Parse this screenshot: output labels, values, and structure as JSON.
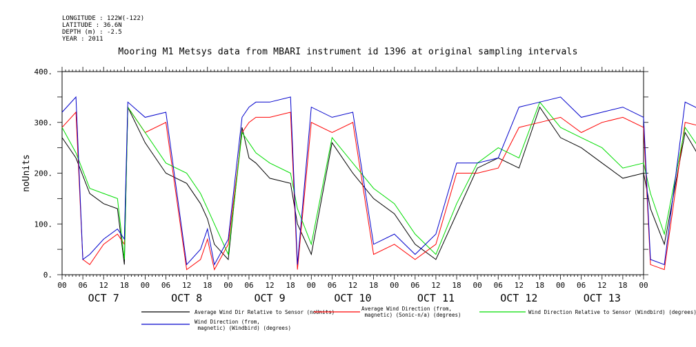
{
  "meta": {
    "longitude": "LONGITUDE : 122W(-122)",
    "latitude": "LATITUDE : 36.6N",
    "depth": "DEPTH (m) : -2.5",
    "year": "YEAR : 2011"
  },
  "chart_data": {
    "type": "line",
    "title": "Mooring M1 Metsys data from MBARI instrument id 1396 at original sampling intervals",
    "ylabel": "noUnits",
    "xlabel": "",
    "ylim": [
      0,
      400
    ],
    "yticks": [
      "0.",
      "100.",
      "200.",
      "300.",
      "400."
    ],
    "x_hour_ticks": [
      "00",
      "06",
      "12",
      "18",
      "00",
      "06",
      "12",
      "18",
      "00",
      "06",
      "12",
      "18",
      "00",
      "06",
      "12",
      "18",
      "00",
      "06",
      "12",
      "18",
      "00",
      "06",
      "12",
      "18",
      "00",
      "06",
      "12",
      "18",
      "00"
    ],
    "day_labels": [
      "OCT 7",
      "OCT 8",
      "OCT 9",
      "OCT 10",
      "OCT 11",
      "OCT 12",
      "OCT 13"
    ],
    "grid": false,
    "legend_position": "bottom",
    "series": [
      {
        "name": "Average Wind Dir Relative to Sensor (noUnits)",
        "color": "#000000",
        "x_hours": [
          0,
          4,
          8,
          12,
          16,
          18,
          19,
          24,
          30,
          36,
          40,
          42,
          44,
          48,
          52,
          54,
          56,
          60,
          66,
          68,
          72,
          78,
          84,
          90,
          96,
          102,
          108,
          114,
          120,
          126,
          132,
          138,
          144,
          150,
          156,
          162,
          168,
          170,
          174,
          180,
          186,
          192,
          198,
          204,
          210,
          216,
          222,
          228,
          234,
          240,
          246,
          252,
          258,
          264,
          270,
          276,
          282,
          288,
          294,
          300,
          306,
          312,
          318,
          324,
          330,
          336
        ],
        "values": [
          270,
          230,
          160,
          140,
          130,
          20,
          330,
          260,
          200,
          180,
          140,
          110,
          60,
          30,
          290,
          230,
          220,
          190,
          180,
          100,
          40,
          260,
          200,
          150,
          120,
          60,
          30,
          120,
          210,
          230,
          210,
          330,
          270,
          250,
          220,
          190,
          200,
          130,
          60,
          280,
          210,
          140,
          150,
          100,
          60,
          200,
          210,
          150,
          80,
          190,
          170,
          210,
          200,
          110,
          80,
          160,
          120,
          40,
          140,
          200,
          210,
          190,
          200,
          210,
          200,
          200
        ]
      },
      {
        "name": "Average Wind Direction (from, magnetic) (Sonic-n/a) (degrees)",
        "color": "#ff0000",
        "x_hours": [
          0,
          4,
          6,
          8,
          12,
          16,
          18,
          19,
          24,
          30,
          36,
          40,
          42,
          44,
          48,
          52,
          54,
          56,
          60,
          66,
          68,
          72,
          78,
          84,
          90,
          96,
          102,
          108,
          114,
          120,
          126,
          132,
          138,
          144,
          150,
          156,
          162,
          168,
          170,
          174,
          180,
          186,
          192,
          198,
          204,
          210,
          216,
          222,
          228,
          234,
          240,
          246,
          252,
          258,
          264,
          270,
          276,
          282,
          288,
          294,
          300,
          306,
          312,
          318,
          324,
          330,
          336
        ],
        "values": [
          290,
          320,
          30,
          20,
          60,
          80,
          60,
          330,
          280,
          300,
          10,
          30,
          70,
          10,
          60,
          280,
          300,
          310,
          310,
          320,
          10,
          300,
          280,
          300,
          40,
          60,
          30,
          60,
          200,
          200,
          210,
          290,
          300,
          310,
          280,
          300,
          310,
          290,
          20,
          10,
          300,
          290,
          290,
          300,
          310,
          300,
          320,
          310,
          10,
          10,
          320,
          320,
          310,
          10,
          30,
          300,
          290,
          290,
          300,
          310,
          320,
          320,
          340,
          300,
          300,
          290,
          290
        ]
      },
      {
        "name": "Wind Direction Relative to Sensor (Windbird) (degrees)",
        "color": "#00dd00",
        "x_hours": [
          0,
          4,
          8,
          12,
          16,
          18,
          19,
          24,
          30,
          36,
          40,
          42,
          44,
          48,
          52,
          54,
          56,
          60,
          66,
          68,
          72,
          78,
          84,
          90,
          96,
          102,
          108,
          114,
          120,
          126,
          132,
          138,
          144,
          150,
          156,
          162,
          168,
          170,
          174,
          180,
          186,
          192,
          198,
          204,
          210,
          216,
          222,
          228,
          234,
          240,
          246,
          252,
          258,
          264,
          270,
          276,
          282,
          288,
          294,
          300,
          306,
          312,
          318,
          324,
          330,
          336
        ],
        "values": [
          290,
          240,
          170,
          160,
          150,
          30,
          330,
          280,
          220,
          200,
          160,
          130,
          100,
          40,
          280,
          260,
          240,
          220,
          200,
          130,
          60,
          270,
          220,
          170,
          140,
          80,
          40,
          140,
          220,
          250,
          230,
          340,
          290,
          270,
          250,
          210,
          220,
          160,
          80,
          290,
          230,
          170,
          180,
          130,
          80,
          230,
          240,
          180,
          100,
          220,
          200,
          240,
          230,
          140,
          110,
          190,
          150,
          60,
          170,
          220,
          230,
          210,
          220,
          230,
          220,
          220
        ]
      },
      {
        "name": "Wind Direction (from, magnetic) (Windbird) (degrees)",
        "color": "#0000cc",
        "x_hours": [
          0,
          4,
          6,
          8,
          12,
          16,
          18,
          19,
          24,
          30,
          36,
          40,
          42,
          44,
          48,
          52,
          54,
          56,
          60,
          66,
          68,
          72,
          78,
          84,
          90,
          96,
          102,
          108,
          114,
          120,
          126,
          132,
          138,
          144,
          150,
          156,
          162,
          168,
          170,
          174,
          180,
          186,
          192,
          198,
          204,
          210,
          216,
          222,
          228,
          234,
          240,
          246,
          252,
          258,
          264,
          270,
          276,
          282,
          288,
          294,
          300,
          306,
          312,
          318,
          324,
          330,
          336
        ],
        "values": [
          320,
          350,
          30,
          40,
          70,
          90,
          70,
          340,
          310,
          320,
          20,
          50,
          90,
          20,
          70,
          310,
          330,
          340,
          340,
          350,
          20,
          330,
          310,
          320,
          60,
          80,
          40,
          80,
          220,
          220,
          230,
          330,
          340,
          350,
          310,
          320,
          330,
          310,
          30,
          20,
          340,
          320,
          320,
          330,
          340,
          330,
          350,
          340,
          20,
          20,
          340,
          350,
          330,
          20,
          40,
          330,
          320,
          320,
          330,
          340,
          350,
          340,
          360,
          330,
          330,
          320,
          310
        ]
      }
    ],
    "legend_order": [
      "Average Wind Dir Relative to Sensor (noUnits)",
      "Average Wind Direction (from, magnetic) (Sonic-n/a) (degrees)",
      "Wind Direction Relative to Sensor (Windbird) (degrees)",
      "Wind Direction (from, magnetic) (Windbird) (degrees)"
    ]
  }
}
